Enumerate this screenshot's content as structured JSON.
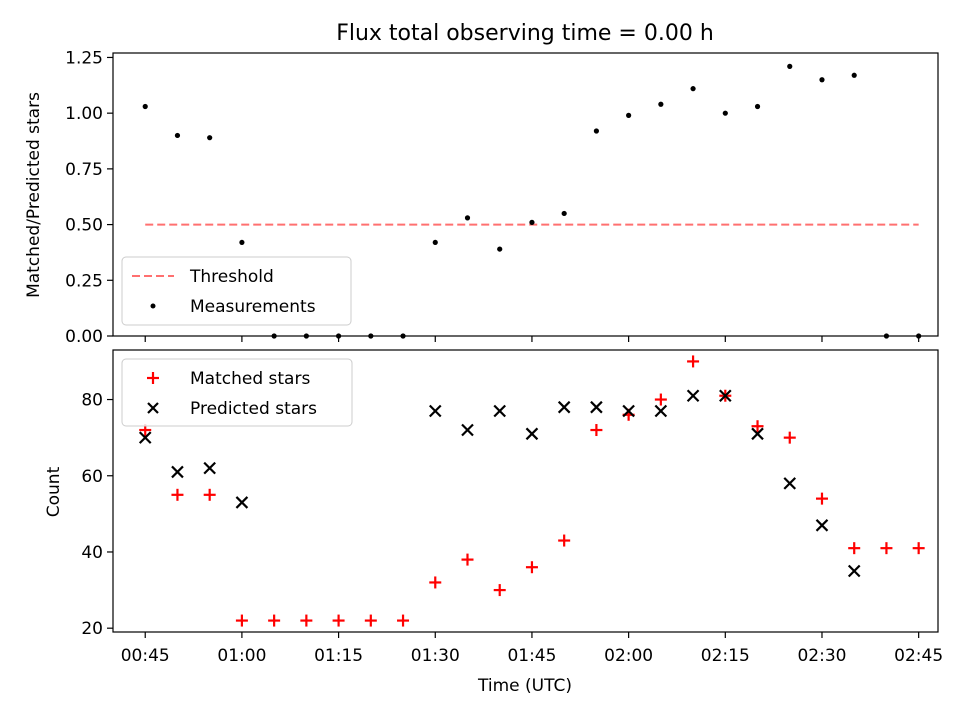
{
  "figure": {
    "title": "Flux total observing time = 0.00 h",
    "xlabel": "Time (UTC)",
    "x_ticks": [
      "00:45",
      "01:00",
      "01:15",
      "01:30",
      "01:45",
      "02:00",
      "02:15",
      "02:30",
      "02:45"
    ]
  },
  "chart_data": [
    {
      "type": "scatter",
      "title": "Flux total observing time = 0.00 h",
      "xlabel": "",
      "ylabel": "Matched/Predicted stars",
      "xlim": [
        "00:40",
        "02:48"
      ],
      "ylim": [
        0,
        1.27
      ],
      "yticks": [
        "0.00",
        "0.25",
        "0.50",
        "0.75",
        "1.00",
        "1.25"
      ],
      "legend_position": "lower-left",
      "lines": [
        {
          "name": "Threshold",
          "style": "dashed",
          "color": "#ff7070",
          "x": [
            "00:45",
            "02:45"
          ],
          "y": [
            0.5,
            0.5
          ]
        }
      ],
      "series": [
        {
          "name": "Measurements",
          "color": "#000000",
          "x": [
            "00:45",
            "00:50",
            "00:55",
            "01:00",
            "01:05",
            "01:10",
            "01:15",
            "01:20",
            "01:25",
            "01:30",
            "01:35",
            "01:40",
            "01:45",
            "01:50",
            "01:55",
            "02:00",
            "02:05",
            "02:10",
            "02:15",
            "02:20",
            "02:25",
            "02:30",
            "02:35",
            "02:40",
            "02:45"
          ],
          "y": [
            1.03,
            0.9,
            0.89,
            0.42,
            0,
            0,
            0,
            0,
            0,
            0.42,
            0.53,
            0.39,
            0.51,
            0.55,
            0.92,
            0.99,
            1.04,
            1.11,
            1.0,
            1.03,
            1.21,
            1.15,
            1.17,
            0,
            0
          ]
        }
      ]
    },
    {
      "type": "scatter",
      "xlabel": "Time (UTC)",
      "ylabel": "Count",
      "xlim": [
        "00:40",
        "02:48"
      ],
      "ylim": [
        19,
        93
      ],
      "yticks": [
        "20",
        "40",
        "60",
        "80"
      ],
      "legend_position": "top-left",
      "series": [
        {
          "name": "Matched stars",
          "marker": "plus",
          "color": "#ff0000",
          "x": [
            "00:45",
            "00:50",
            "00:55",
            "01:00",
            "01:05",
            "01:10",
            "01:15",
            "01:20",
            "01:25",
            "01:30",
            "01:35",
            "01:40",
            "01:45",
            "01:50",
            "01:55",
            "02:00",
            "02:05",
            "02:10",
            "02:15",
            "02:20",
            "02:25",
            "02:30",
            "02:35",
            "02:40",
            "02:45"
          ],
          "y": [
            72,
            55,
            55,
            22,
            22,
            22,
            22,
            22,
            22,
            32,
            38,
            30,
            36,
            43,
            72,
            76,
            80,
            90,
            81,
            73,
            70,
            54,
            41,
            41,
            41
          ]
        },
        {
          "name": "Predicted stars",
          "marker": "x",
          "color": "#000000",
          "x": [
            "00:45",
            "00:50",
            "00:55",
            "01:00",
            "01:30",
            "01:35",
            "01:40",
            "01:45",
            "01:50",
            "01:55",
            "02:00",
            "02:05",
            "02:10",
            "02:15",
            "02:20",
            "02:25",
            "02:30",
            "02:35"
          ],
          "y": [
            70,
            61,
            62,
            53,
            77,
            72,
            77,
            71,
            78,
            78,
            77,
            77,
            81,
            81,
            71,
            58,
            47,
            35
          ]
        }
      ]
    }
  ]
}
